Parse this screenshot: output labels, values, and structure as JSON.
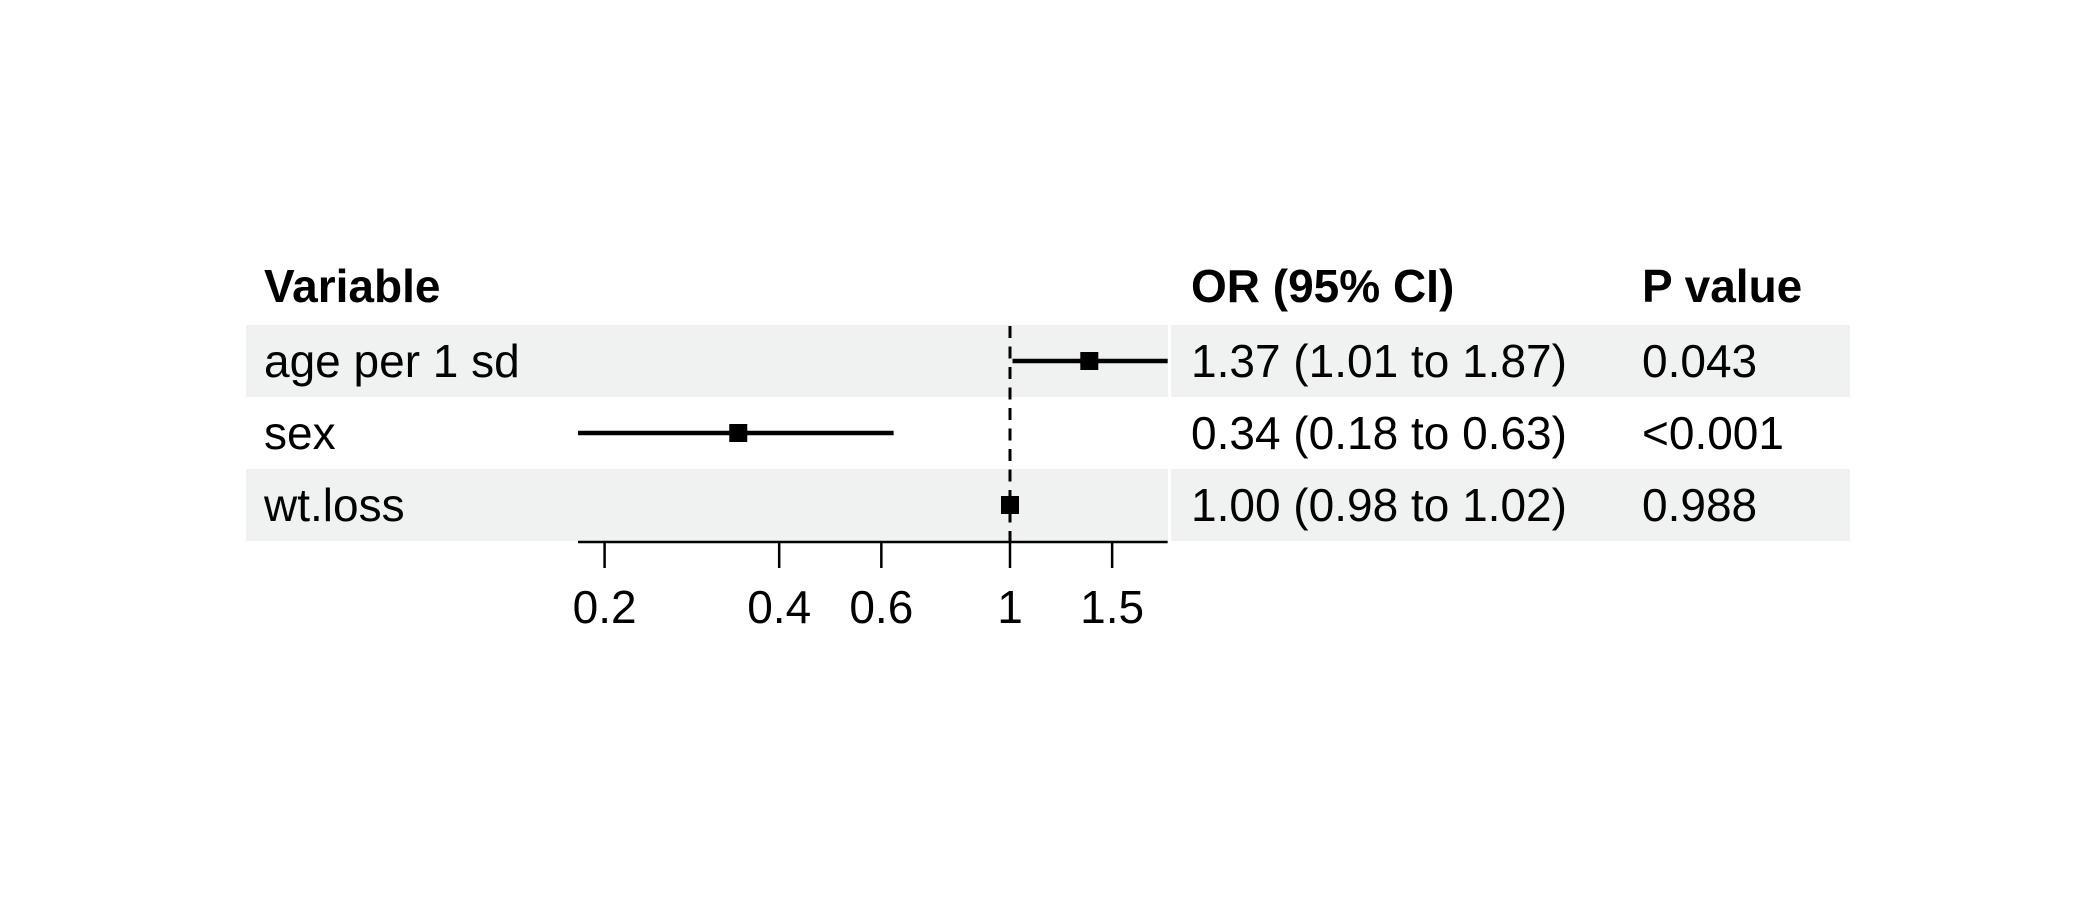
{
  "chart_data": {
    "type": "forest",
    "title": "",
    "scale": "log10",
    "columns": {
      "variable": "Variable",
      "or": "OR (95% CI)",
      "p": "P value"
    },
    "rows": [
      {
        "variable": "age per 1 sd",
        "or": 1.37,
        "ci_low": 1.01,
        "ci_high": 1.87,
        "or_ci_text": "1.37 (1.01 to 1.87)",
        "p_text": "0.043",
        "shaded": true
      },
      {
        "variable": "sex",
        "or": 0.34,
        "ci_low": 0.18,
        "ci_high": 0.63,
        "or_ci_text": "0.34 (0.18 to 0.63)",
        "p_text": "<0.001",
        "shaded": false
      },
      {
        "variable": "wt.loss",
        "or": 1.0,
        "ci_low": 0.98,
        "ci_high": 1.02,
        "or_ci_text": "1.00 (0.98 to 1.02)",
        "p_text": "0.988",
        "shaded": true
      }
    ],
    "axis": {
      "ticks": [
        0.2,
        0.4,
        0.6,
        1,
        1.5
      ],
      "tick_labels": [
        "0.2",
        "0.4",
        "0.6",
        "1",
        "1.5"
      ],
      "reference_line": 1,
      "range_low": 0.18,
      "range_high": 1.87,
      "grid": false
    },
    "colors": {
      "band": "#eff2f1",
      "ink": "#000000",
      "background": "#ffffff"
    }
  }
}
